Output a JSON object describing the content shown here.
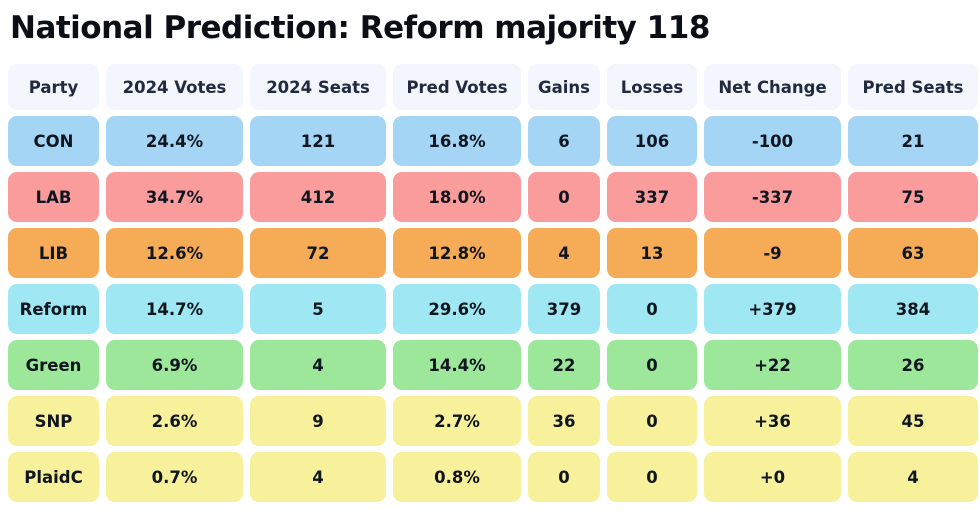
{
  "title": "National Prediction: Reform majority 118",
  "table": {
    "columns": [
      "Party",
      "2024 Votes",
      "2024 Seats",
      "Pred Votes",
      "Gains",
      "Losses",
      "Net Change",
      "Pred Seats"
    ],
    "rows": [
      {
        "key": "con",
        "cells": [
          "CON",
          "24.4%",
          "121",
          "16.8%",
          "6",
          "106",
          "-100",
          "21"
        ]
      },
      {
        "key": "lab",
        "cells": [
          "LAB",
          "34.7%",
          "412",
          "18.0%",
          "0",
          "337",
          "-337",
          "75"
        ]
      },
      {
        "key": "lib",
        "cells": [
          "LIB",
          "12.6%",
          "72",
          "12.8%",
          "4",
          "13",
          "-9",
          "63"
        ]
      },
      {
        "key": "reform",
        "cells": [
          "Reform",
          "14.7%",
          "5",
          "29.6%",
          "379",
          "0",
          "+379",
          "384"
        ]
      },
      {
        "key": "green",
        "cells": [
          "Green",
          "6.9%",
          "4",
          "14.4%",
          "22",
          "0",
          "+22",
          "26"
        ]
      },
      {
        "key": "snp",
        "cells": [
          "SNP",
          "2.6%",
          "9",
          "2.7%",
          "36",
          "0",
          "+36",
          "45"
        ]
      },
      {
        "key": "plaidc",
        "cells": [
          "PlaidC",
          "0.7%",
          "4",
          "0.8%",
          "0",
          "0",
          "+0",
          "4"
        ]
      }
    ]
  },
  "colors": {
    "header_bg": "#f3f6fc",
    "header_text": "#222a3f",
    "cell_text": "#10161f",
    "con": "#a4d5f5",
    "lab": "#fa9c9c",
    "lib": "#f6ab57",
    "reform": "#9fe7f2",
    "green": "#9de79b",
    "snp": "#f8f19b",
    "plaidc": "#f8f19b"
  },
  "chart_data": {
    "type": "table",
    "title": "National Prediction: Reform majority 118",
    "columns": [
      "Party",
      "2024 Votes",
      "2024 Seats",
      "Pred Votes",
      "Gains",
      "Losses",
      "Net Change",
      "Pred Seats"
    ],
    "rows": [
      [
        "CON",
        "24.4%",
        121,
        "16.8%",
        6,
        106,
        -100,
        21
      ],
      [
        "LAB",
        "34.7%",
        412,
        "18.0%",
        0,
        337,
        -337,
        75
      ],
      [
        "LIB",
        "12.6%",
        72,
        "12.8%",
        4,
        13,
        -9,
        63
      ],
      [
        "Reform",
        "14.7%",
        5,
        "29.6%",
        379,
        0,
        379,
        384
      ],
      [
        "Green",
        "6.9%",
        4,
        "14.4%",
        22,
        0,
        22,
        26
      ],
      [
        "SNP",
        "2.6%",
        9,
        "2.7%",
        36,
        0,
        36,
        45
      ],
      [
        "PlaidC",
        "0.7%",
        4,
        "0.8%",
        0,
        0,
        0,
        4
      ]
    ],
    "headline_result": {
      "party": "Reform",
      "majority": 118
    }
  }
}
